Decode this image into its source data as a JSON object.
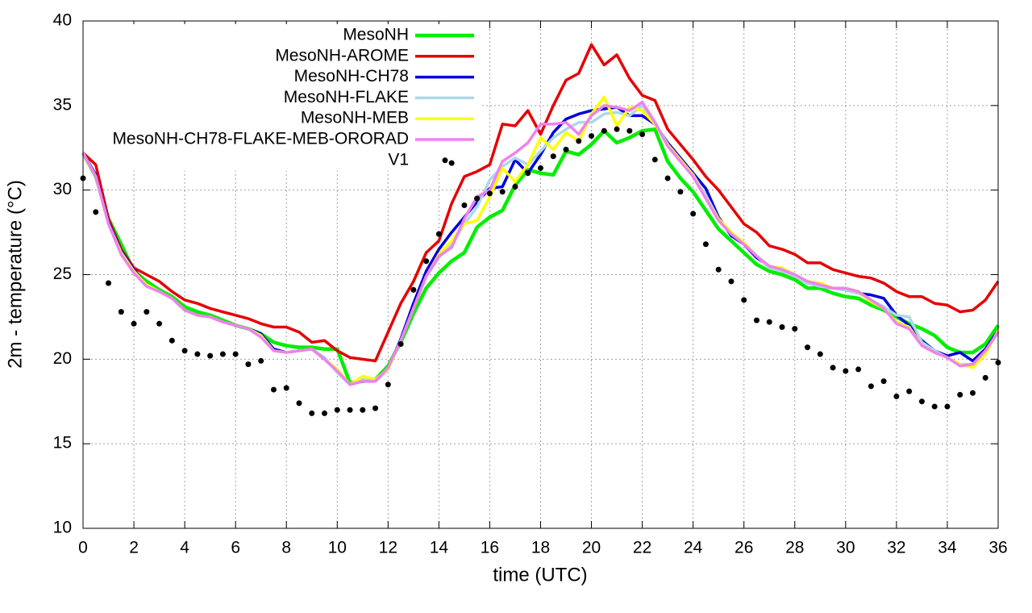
{
  "chart_data": {
    "type": "line",
    "xlabel": "time (UTC)",
    "ylabel": "2m - temperature (°C)",
    "xlim": [
      0,
      36
    ],
    "ylim": [
      10,
      40
    ],
    "xticks": [
      0,
      2,
      4,
      6,
      8,
      10,
      12,
      14,
      16,
      18,
      20,
      22,
      24,
      26,
      28,
      30,
      32,
      34,
      36
    ],
    "yticks": [
      10,
      15,
      20,
      25,
      30,
      35,
      40
    ],
    "grid": true,
    "legend": "top",
    "x": [
      0,
      0.5,
      1,
      1.5,
      2,
      2.5,
      3,
      3.5,
      4,
      4.5,
      5,
      5.5,
      6,
      6.5,
      7,
      7.5,
      8,
      8.5,
      9,
      9.5,
      10,
      10.5,
      11,
      11.5,
      12,
      12.5,
      13,
      13.5,
      14,
      14.5,
      15,
      15.5,
      16,
      16.5,
      17,
      17.5,
      18,
      18.5,
      19,
      19.5,
      20,
      20.5,
      21,
      21.5,
      22,
      22.5,
      23,
      23.5,
      24,
      24.5,
      25,
      25.5,
      26,
      26.5,
      27,
      27.5,
      28,
      28.5,
      29,
      29.5,
      30,
      30.5,
      31,
      31.5,
      32,
      32.5,
      33,
      33.5,
      34,
      34.5,
      35,
      35.5,
      36
    ],
    "series": [
      {
        "name": "MesoNH",
        "color": "#00ee00",
        "mode": "lines",
        "width": 4.5,
        "values": [
          32.2,
          30.8,
          28.3,
          26.8,
          25.2,
          24.6,
          24.1,
          23.7,
          23.1,
          22.8,
          22.6,
          22.3,
          22.0,
          21.8,
          21.5,
          21.0,
          20.8,
          20.7,
          20.7,
          20.6,
          20.6,
          18.6,
          18.7,
          18.8,
          19.6,
          21.0,
          22.7,
          24.2,
          25.1,
          25.8,
          26.3,
          27.8,
          28.4,
          28.8,
          30.3,
          31.2,
          31.0,
          30.9,
          32.3,
          32.1,
          32.7,
          33.5,
          32.8,
          33.1,
          33.5,
          33.6,
          31.7,
          30.7,
          29.9,
          28.8,
          27.7,
          27.0,
          26.3,
          25.6,
          25.2,
          25.0,
          24.7,
          24.2,
          24.2,
          23.9,
          23.7,
          23.6,
          23.2,
          22.9,
          22.5,
          22.1,
          21.8,
          21.4,
          20.7,
          20.4,
          20.4,
          20.9,
          22.0
        ]
      },
      {
        "name": "MesoNH-AROME",
        "color": "#e60000",
        "mode": "lines",
        "width": 3.5,
        "values": [
          32.2,
          31.5,
          28.3,
          26.5,
          25.4,
          25.0,
          24.6,
          24.0,
          23.5,
          23.3,
          23.0,
          22.8,
          22.6,
          22.4,
          22.1,
          21.9,
          21.9,
          21.6,
          21.0,
          21.1,
          20.5,
          20.1,
          20.0,
          19.9,
          21.6,
          23.3,
          24.6,
          26.3,
          27.0,
          29.2,
          30.8,
          31.1,
          31.5,
          33.9,
          33.8,
          34.7,
          33.3,
          35.0,
          36.5,
          36.9,
          38.6,
          37.4,
          38.0,
          36.6,
          35.6,
          35.3,
          33.6,
          32.7,
          31.8,
          30.8,
          30.0,
          29.0,
          28.0,
          27.5,
          26.7,
          26.5,
          26.2,
          25.7,
          25.7,
          25.3,
          25.1,
          24.9,
          24.8,
          24.5,
          24.0,
          23.7,
          23.7,
          23.3,
          23.2,
          22.8,
          22.9,
          23.5,
          24.6
        ]
      },
      {
        "name": "MesoNH-CH78",
        "color": "#0000dd",
        "mode": "lines",
        "width": 3.5,
        "values": [
          32.2,
          30.9,
          28.1,
          26.4,
          25.3,
          24.4,
          24.0,
          23.6,
          22.9,
          22.6,
          22.5,
          22.2,
          22.0,
          21.8,
          21.5,
          20.6,
          20.4,
          20.5,
          20.6,
          20.0,
          19.3,
          18.5,
          18.7,
          18.7,
          19.4,
          21.2,
          23.3,
          25.2,
          26.5,
          27.5,
          28.4,
          29.3,
          30.1,
          30.2,
          31.8,
          31.0,
          32.1,
          33.4,
          34.2,
          34.5,
          34.7,
          34.8,
          34.9,
          34.4,
          34.4,
          33.9,
          32.8,
          31.9,
          31.0,
          30.1,
          28.4,
          27.3,
          26.8,
          26.0,
          25.5,
          25.2,
          24.9,
          24.5,
          24.3,
          24.2,
          24.1,
          23.9,
          23.8,
          23.6,
          22.6,
          22.0,
          21.1,
          20.5,
          20.2,
          20.4,
          19.9,
          20.6,
          21.7
        ]
      },
      {
        "name": "MesoNH-FLAKE",
        "color": "#add8e6",
        "mode": "lines",
        "width": 3.5,
        "values": [
          32.2,
          30.8,
          28.0,
          26.3,
          25.2,
          24.4,
          24.0,
          23.6,
          22.9,
          22.6,
          22.5,
          22.2,
          22.0,
          21.8,
          21.4,
          20.5,
          20.4,
          20.5,
          20.6,
          20.1,
          19.2,
          18.5,
          18.8,
          18.7,
          19.4,
          21.1,
          23.0,
          24.9,
          26.0,
          26.8,
          28.0,
          29.0,
          30.6,
          31.4,
          31.9,
          31.5,
          32.3,
          33.1,
          33.6,
          34.0,
          34.0,
          34.5,
          34.6,
          34.4,
          35.0,
          34.0,
          32.7,
          31.7,
          30.9,
          29.7,
          28.3,
          27.4,
          26.9,
          26.1,
          25.4,
          25.2,
          24.9,
          24.5,
          24.3,
          24.2,
          24.1,
          23.9,
          23.5,
          23.1,
          22.6,
          22.5,
          21.0,
          20.5,
          20.1,
          19.7,
          19.7,
          20.4,
          21.6
        ]
      },
      {
        "name": "MesoNH-MEB",
        "color": "#ffff00",
        "mode": "lines",
        "width": 3.5,
        "values": [
          32.2,
          30.8,
          28.0,
          26.3,
          25.2,
          24.4,
          24.0,
          23.6,
          22.9,
          22.6,
          22.5,
          22.2,
          22.0,
          21.8,
          21.4,
          20.5,
          20.4,
          20.5,
          20.6,
          20.0,
          19.4,
          18.5,
          19.0,
          18.8,
          19.4,
          21.1,
          23.0,
          24.9,
          26.2,
          27.0,
          28.0,
          28.2,
          29.6,
          31.3,
          30.5,
          31.5,
          33.1,
          32.4,
          33.4,
          32.9,
          34.5,
          35.5,
          33.8,
          34.9,
          34.7,
          33.9,
          32.7,
          31.8,
          30.9,
          29.5,
          28.3,
          27.5,
          26.9,
          26.1,
          25.5,
          25.4,
          25.0,
          24.6,
          24.5,
          24.2,
          24.2,
          24.0,
          23.4,
          23.0,
          22.2,
          21.9,
          20.8,
          20.4,
          20.1,
          19.7,
          19.5,
          20.3,
          21.7
        ]
      },
      {
        "name": "MesoNH-CH78-FLAKE-MEB-ORORAD",
        "color": "#ee82ee",
        "mode": "lines",
        "width": 3.5,
        "values": [
          32.2,
          30.8,
          28.0,
          26.2,
          25.1,
          24.3,
          24.0,
          23.6,
          22.9,
          22.6,
          22.5,
          22.2,
          22.0,
          21.8,
          21.3,
          20.5,
          20.4,
          20.5,
          20.6,
          20.0,
          19.3,
          18.5,
          18.7,
          18.7,
          19.5,
          21.1,
          23.0,
          24.9,
          26.1,
          26.6,
          28.3,
          29.6,
          30.0,
          31.7,
          32.2,
          32.8,
          33.9,
          33.9,
          34.0,
          33.3,
          34.4,
          35.0,
          34.9,
          34.7,
          35.2,
          34.0,
          32.6,
          31.7,
          30.8,
          29.5,
          28.2,
          27.4,
          26.8,
          26.1,
          25.5,
          25.3,
          25.0,
          24.6,
          24.4,
          24.2,
          24.2,
          24.0,
          23.5,
          23.0,
          22.1,
          21.8,
          20.8,
          20.4,
          20.1,
          19.6,
          19.7,
          20.5,
          21.6
        ]
      },
      {
        "name": "V1",
        "color": "#000000",
        "mode": "points",
        "width": 3.5,
        "values": [
          30.7,
          28.7,
          24.5,
          22.8,
          22.1,
          22.8,
          22.1,
          21.1,
          20.5,
          20.3,
          20.2,
          20.3,
          20.3,
          19.7,
          19.9,
          18.2,
          18.3,
          17.4,
          16.8,
          16.8,
          17.0,
          17.0,
          17.0,
          17.1,
          18.5,
          20.9,
          24.1,
          25.8,
          27.4,
          31.6,
          29.1,
          29.5,
          29.8,
          29.9,
          30.2,
          31.0,
          31.3,
          32.0,
          32.4,
          32.9,
          33.2,
          33.5,
          33.6,
          33.5,
          33.3,
          31.8,
          30.7,
          29.9,
          28.6,
          26.8,
          25.3,
          24.6,
          23.5,
          22.3,
          22.2,
          21.9,
          21.8,
          20.7,
          20.3,
          19.5,
          19.3,
          19.4,
          18.4,
          18.7,
          17.8,
          18.1,
          17.5,
          17.2,
          17.2,
          17.9,
          18.0,
          18.9,
          19.8
        ]
      }
    ]
  }
}
